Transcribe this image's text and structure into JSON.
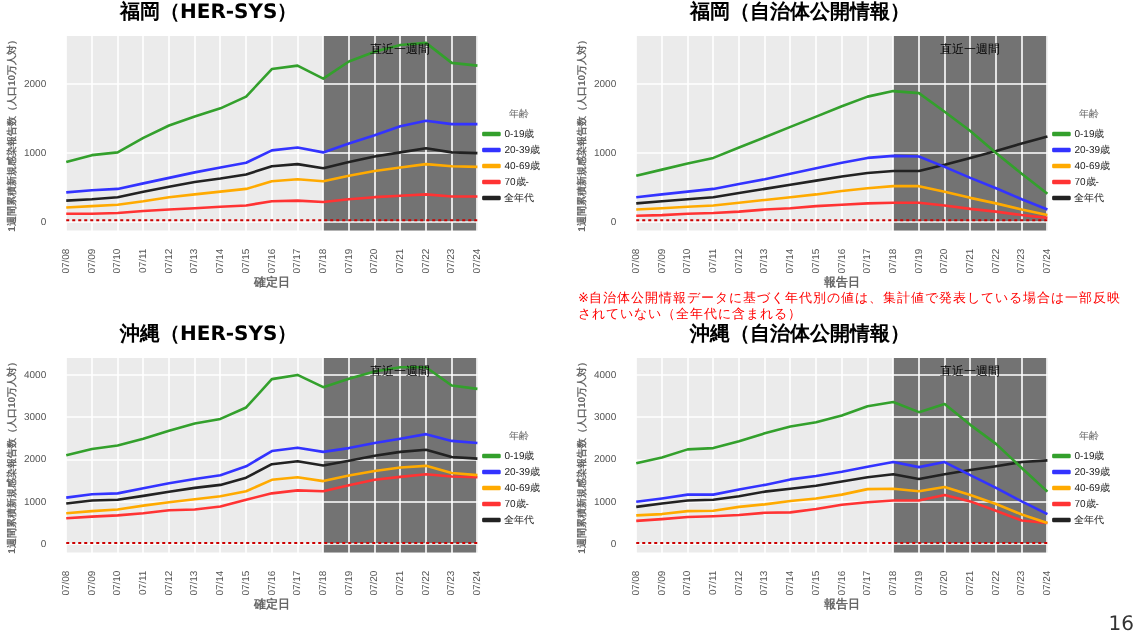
{
  "chart_data": [
    {
      "type": "line",
      "title": "福岡（HER-SYS）",
      "xlabel": "確定日",
      "ylabel": "1週間累積新規感染報告数（人口10万人対）",
      "legend_title": "年齢",
      "legend": "right",
      "grid": true,
      "marker": "none",
      "categories": [
        "07/08",
        "07/09",
        "07/10",
        "07/11",
        "07/12",
        "07/13",
        "07/14",
        "07/15",
        "07/16",
        "07/17",
        "07/18",
        "07/19",
        "07/20",
        "07/21",
        "07/22",
        "07/23",
        "07/24"
      ],
      "ylim": [
        -125,
        2700
      ],
      "yticks": [
        0,
        1000,
        2000
      ],
      "series": [
        {
          "name": "0-19歳",
          "color": "#33a02c",
          "values": [
            870,
            970,
            1010,
            1220,
            1400,
            1530,
            1650,
            1820,
            2220,
            2270,
            2080,
            2330,
            2470,
            2570,
            2600,
            2310,
            2270
          ]
        },
        {
          "name": "20-39歳",
          "color": "#3333ff",
          "values": [
            430,
            460,
            480,
            560,
            640,
            720,
            790,
            860,
            1040,
            1080,
            1010,
            1140,
            1260,
            1390,
            1470,
            1420,
            1420
          ]
        },
        {
          "name": "40-69歳",
          "color": "#ffaa00",
          "values": [
            210,
            230,
            250,
            300,
            360,
            400,
            440,
            480,
            590,
            620,
            590,
            670,
            740,
            790,
            840,
            810,
            800
          ]
        },
        {
          "name": "70歳-",
          "color": "#ff3333",
          "values": [
            120,
            120,
            130,
            160,
            180,
            200,
            220,
            240,
            300,
            310,
            290,
            330,
            360,
            380,
            400,
            370,
            370
          ]
        },
        {
          "name": "全年代",
          "color": "#222222",
          "values": [
            310,
            330,
            360,
            440,
            510,
            580,
            630,
            690,
            810,
            840,
            780,
            870,
            950,
            1010,
            1070,
            1010,
            1000
          ]
        }
      ],
      "bands": [
        {
          "axis": "x",
          "from": "07/18",
          "to": "07/24",
          "label": "直近一週間",
          "color": "#404040"
        }
      ],
      "ref_lines": [
        {
          "axis": "y",
          "value": 25,
          "color": "#cc0000",
          "line_style": "dotted"
        }
      ]
    },
    {
      "type": "line",
      "title": "福岡（自治体公開情報）",
      "xlabel": "報告日",
      "ylabel": "1週間累積新規感染報告数（人口10万人対）",
      "legend_title": "年齢",
      "legend": "right",
      "grid": true,
      "marker": "none",
      "categories": [
        "07/08",
        "07/09",
        "07/10",
        "07/11",
        "07/12",
        "07/13",
        "07/14",
        "07/15",
        "07/16",
        "07/17",
        "07/18",
        "07/19",
        "07/20",
        "07/21",
        "07/22",
        "07/23",
        "07/24"
      ],
      "ylim": [
        -125,
        2700
      ],
      "yticks": [
        0,
        1000,
        2000
      ],
      "series": [
        {
          "name": "0-19歳",
          "color": "#33a02c",
          "values": [
            670,
            760,
            850,
            930,
            1080,
            1230,
            1380,
            1530,
            1680,
            1820,
            1900,
            1870,
            1600,
            1320,
            1000,
            700,
            410
          ]
        },
        {
          "name": "20-39歳",
          "color": "#3333ff",
          "values": [
            360,
            400,
            440,
            480,
            550,
            620,
            700,
            780,
            860,
            930,
            960,
            950,
            800,
            640,
            490,
            330,
            180
          ]
        },
        {
          "name": "40-69歳",
          "color": "#ffaa00",
          "values": [
            180,
            200,
            220,
            240,
            280,
            320,
            360,
            400,
            450,
            490,
            520,
            520,
            440,
            350,
            270,
            180,
            100
          ]
        },
        {
          "name": "70歳-",
          "color": "#ff3333",
          "values": [
            90,
            100,
            120,
            130,
            150,
            180,
            200,
            230,
            250,
            270,
            280,
            280,
            240,
            190,
            150,
            100,
            60
          ]
        },
        {
          "name": "全年代",
          "color": "#222222",
          "values": [
            270,
            300,
            330,
            360,
            420,
            480,
            540,
            600,
            660,
            710,
            740,
            740,
            830,
            930,
            1030,
            1140,
            1240
          ]
        }
      ],
      "bands": [
        {
          "axis": "x",
          "from": "07/18",
          "to": "07/24",
          "label": "直近一週間",
          "color": "#404040"
        }
      ],
      "ref_lines": [
        {
          "axis": "y",
          "value": 25,
          "color": "#cc0000",
          "line_style": "dotted"
        }
      ],
      "annotations": [
        "※自治体公開情報データに基づく年代別の値は、集計値で発表している場合は一部反映されていない（全年代に含まれる）"
      ]
    },
    {
      "type": "line",
      "title": "沖縄（HER-SYS）",
      "xlabel": "確定日",
      "ylabel": "1週間累積新規感染報告数（人口10万人対）",
      "legend_title": "年齢",
      "legend": "right",
      "grid": true,
      "marker": "none",
      "categories": [
        "07/08",
        "07/09",
        "07/10",
        "07/11",
        "07/12",
        "07/13",
        "07/14",
        "07/15",
        "07/16",
        "07/17",
        "07/18",
        "07/19",
        "07/20",
        "07/21",
        "07/22",
        "07/23",
        "07/24"
      ],
      "ylim": [
        -200,
        4400
      ],
      "yticks": [
        0,
        1000,
        2000,
        3000,
        4000
      ],
      "series": [
        {
          "name": "0-19歳",
          "color": "#33a02c",
          "values": [
            2100,
            2250,
            2330,
            2490,
            2680,
            2850,
            2960,
            3230,
            3900,
            4000,
            3710,
            3910,
            4080,
            4180,
            4180,
            3750,
            3670
          ]
        },
        {
          "name": "20-39歳",
          "color": "#3333ff",
          "values": [
            1100,
            1180,
            1200,
            1320,
            1440,
            1540,
            1630,
            1840,
            2200,
            2280,
            2180,
            2270,
            2390,
            2490,
            2600,
            2440,
            2390
          ]
        },
        {
          "name": "40-69歳",
          "color": "#ffaa00",
          "values": [
            730,
            780,
            820,
            910,
            990,
            1060,
            1130,
            1250,
            1520,
            1580,
            1490,
            1620,
            1730,
            1810,
            1850,
            1680,
            1630
          ]
        },
        {
          "name": "70歳-",
          "color": "#ff3333",
          "values": [
            610,
            650,
            680,
            730,
            800,
            820,
            890,
            1050,
            1200,
            1270,
            1250,
            1390,
            1520,
            1590,
            1650,
            1600,
            1580
          ]
        },
        {
          "name": "全年代",
          "color": "#222222",
          "values": [
            960,
            1030,
            1050,
            1140,
            1240,
            1330,
            1400,
            1570,
            1890,
            1960,
            1860,
            1970,
            2090,
            2180,
            2230,
            2060,
            2020
          ]
        }
      ],
      "bands": [
        {
          "axis": "x",
          "from": "07/18",
          "to": "07/24",
          "label": "直近一週間",
          "color": "#404040"
        }
      ],
      "ref_lines": [
        {
          "axis": "y",
          "value": 25,
          "color": "#cc0000",
          "line_style": "dotted"
        }
      ]
    },
    {
      "type": "line",
      "title": "沖縄（自治体公開情報）",
      "xlabel": "報告日",
      "ylabel": "1週間累積新規感染報告数（人口10万人対）",
      "legend_title": "年齢",
      "legend": "right",
      "grid": true,
      "marker": "none",
      "categories": [
        "07/08",
        "07/09",
        "07/10",
        "07/11",
        "07/12",
        "07/13",
        "07/14",
        "07/15",
        "07/16",
        "07/17",
        "07/18",
        "07/19",
        "07/20",
        "07/21",
        "07/22",
        "07/23",
        "07/24"
      ],
      "ylim": [
        -200,
        4400
      ],
      "yticks": [
        0,
        1000,
        2000,
        3000,
        4000
      ],
      "series": [
        {
          "name": "0-19歳",
          "color": "#33a02c",
          "values": [
            1910,
            2050,
            2240,
            2270,
            2430,
            2620,
            2780,
            2880,
            3040,
            3260,
            3360,
            3120,
            3310,
            2820,
            2370,
            1800,
            1240
          ]
        },
        {
          "name": "20-39歳",
          "color": "#3333ff",
          "values": [
            1000,
            1080,
            1170,
            1170,
            1290,
            1400,
            1530,
            1610,
            1710,
            1830,
            1940,
            1820,
            1940,
            1630,
            1330,
            1010,
            710
          ]
        },
        {
          "name": "40-69歳",
          "color": "#ffaa00",
          "values": [
            680,
            710,
            780,
            790,
            880,
            940,
            1020,
            1080,
            1170,
            1300,
            1310,
            1250,
            1350,
            1160,
            950,
            700,
            500
          ]
        },
        {
          "name": "70歳-",
          "color": "#ff3333",
          "values": [
            550,
            590,
            640,
            660,
            690,
            740,
            750,
            830,
            930,
            990,
            1030,
            1030,
            1160,
            1010,
            790,
            560,
            500
          ]
        },
        {
          "name": "全年代",
          "color": "#222222",
          "values": [
            880,
            960,
            1030,
            1050,
            1130,
            1240,
            1310,
            1380,
            1480,
            1580,
            1650,
            1540,
            1650,
            1750,
            1840,
            1940,
            1980
          ]
        }
      ],
      "bands": [
        {
          "axis": "x",
          "from": "07/18",
          "to": "07/24",
          "label": "直近一週間",
          "color": "#404040"
        }
      ],
      "ref_lines": [
        {
          "axis": "y",
          "value": 25,
          "color": "#cc0000",
          "line_style": "dotted"
        }
      ],
      "annotations": [
        "16"
      ]
    }
  ]
}
